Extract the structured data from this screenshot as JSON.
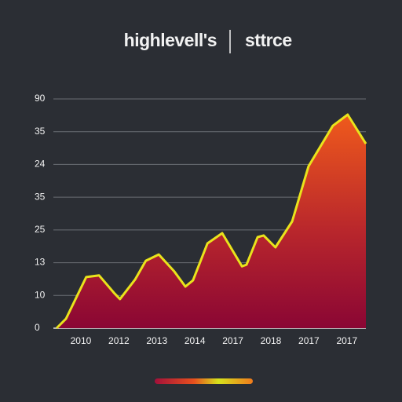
{
  "chart_data": {
    "type": "area",
    "title": "highlevell's",
    "subtitle": "sttrce",
    "x": [
      -0.64,
      -0.39,
      0.14,
      0.48,
      0.87,
      1.03,
      1.43,
      1.71,
      2.05,
      2.46,
      2.75,
      2.95,
      3.33,
      3.72,
      4.24,
      4.36,
      4.65,
      4.81,
      5.12,
      5.56,
      5.99,
      6.63,
      7.02,
      7.5
    ],
    "series": [
      {
        "color": "#e9e31c",
        "values": [
          0,
          2.9,
          15.6,
          16.1,
          10.8,
          8.9,
          14.9,
          20.6,
          22.5,
          17.3,
          12.7,
          14.6,
          25.9,
          29.0,
          18.9,
          19.4,
          27.8,
          28.3,
          24.7,
          32.6,
          49.4,
          61.8,
          65.2,
          56.3
        ]
      }
    ],
    "xlim": [
      -0.64,
      7.5
    ],
    "xticks": [
      {
        "value": 0,
        "label": "2010"
      },
      {
        "value": 1,
        "label": "2012"
      },
      {
        "value": 2,
        "label": "2013"
      },
      {
        "value": 3,
        "label": "2014"
      },
      {
        "value": 4,
        "label": "2017"
      },
      {
        "value": 5,
        "label": "2018"
      },
      {
        "value": 6,
        "label": "2017"
      },
      {
        "value": 7,
        "label": "2017"
      }
    ],
    "ylim": [
      0,
      70
    ],
    "yticks": [
      0,
      10,
      {
        "value": 20,
        "label": "13"
      },
      {
        "value": 30,
        "label": "25"
      },
      {
        "value": 40,
        "label": "35"
      },
      {
        "value": 50,
        "label": "24"
      },
      {
        "value": 60,
        "label": "35"
      },
      {
        "value": 70,
        "label": "90"
      }
    ],
    "grid": true
  }
}
